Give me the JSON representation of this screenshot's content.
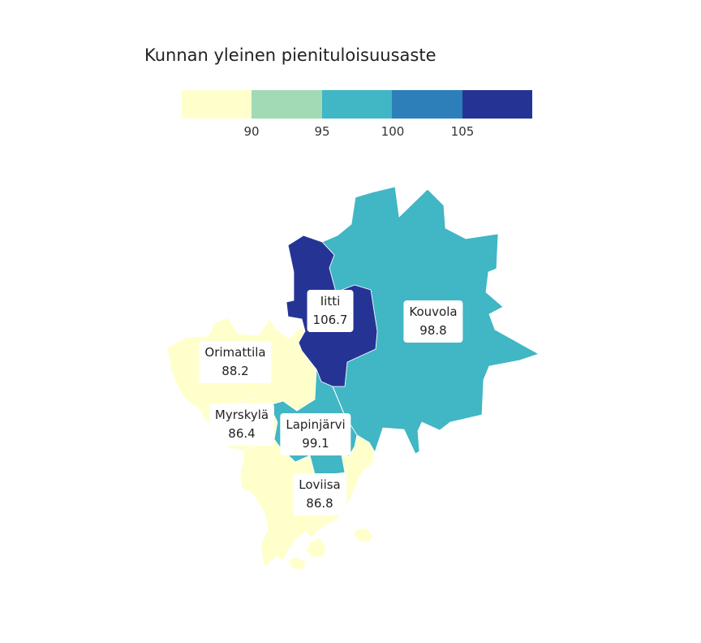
{
  "title": "Kunnan yleinen pienituloisuusaste",
  "legend": {
    "colors": [
      "#ffffcc",
      "#a1dab4",
      "#41b6c4",
      "#2c7fb8",
      "#253494"
    ],
    "ticks": [
      "90",
      "95",
      "100",
      "105"
    ]
  },
  "municipalities": [
    {
      "id": "iitti",
      "name": "Iitti",
      "value": "106.7",
      "color": "#253494"
    },
    {
      "id": "kouvola",
      "name": "Kouvola",
      "value": "98.8",
      "color": "#41b6c4"
    },
    {
      "id": "orimattila",
      "name": "Orimattila",
      "value": "88.2",
      "color": "#ffffcc"
    },
    {
      "id": "myrskyla",
      "name": "Myrskylä",
      "value": "86.4",
      "color": "#ffffcc"
    },
    {
      "id": "lapinjarvi",
      "name": "Lapinjärvi",
      "value": "99.1",
      "color": "#41b6c4"
    },
    {
      "id": "loviisa",
      "name": "Loviisa",
      "value": "86.8",
      "color": "#ffffcc"
    }
  ]
}
